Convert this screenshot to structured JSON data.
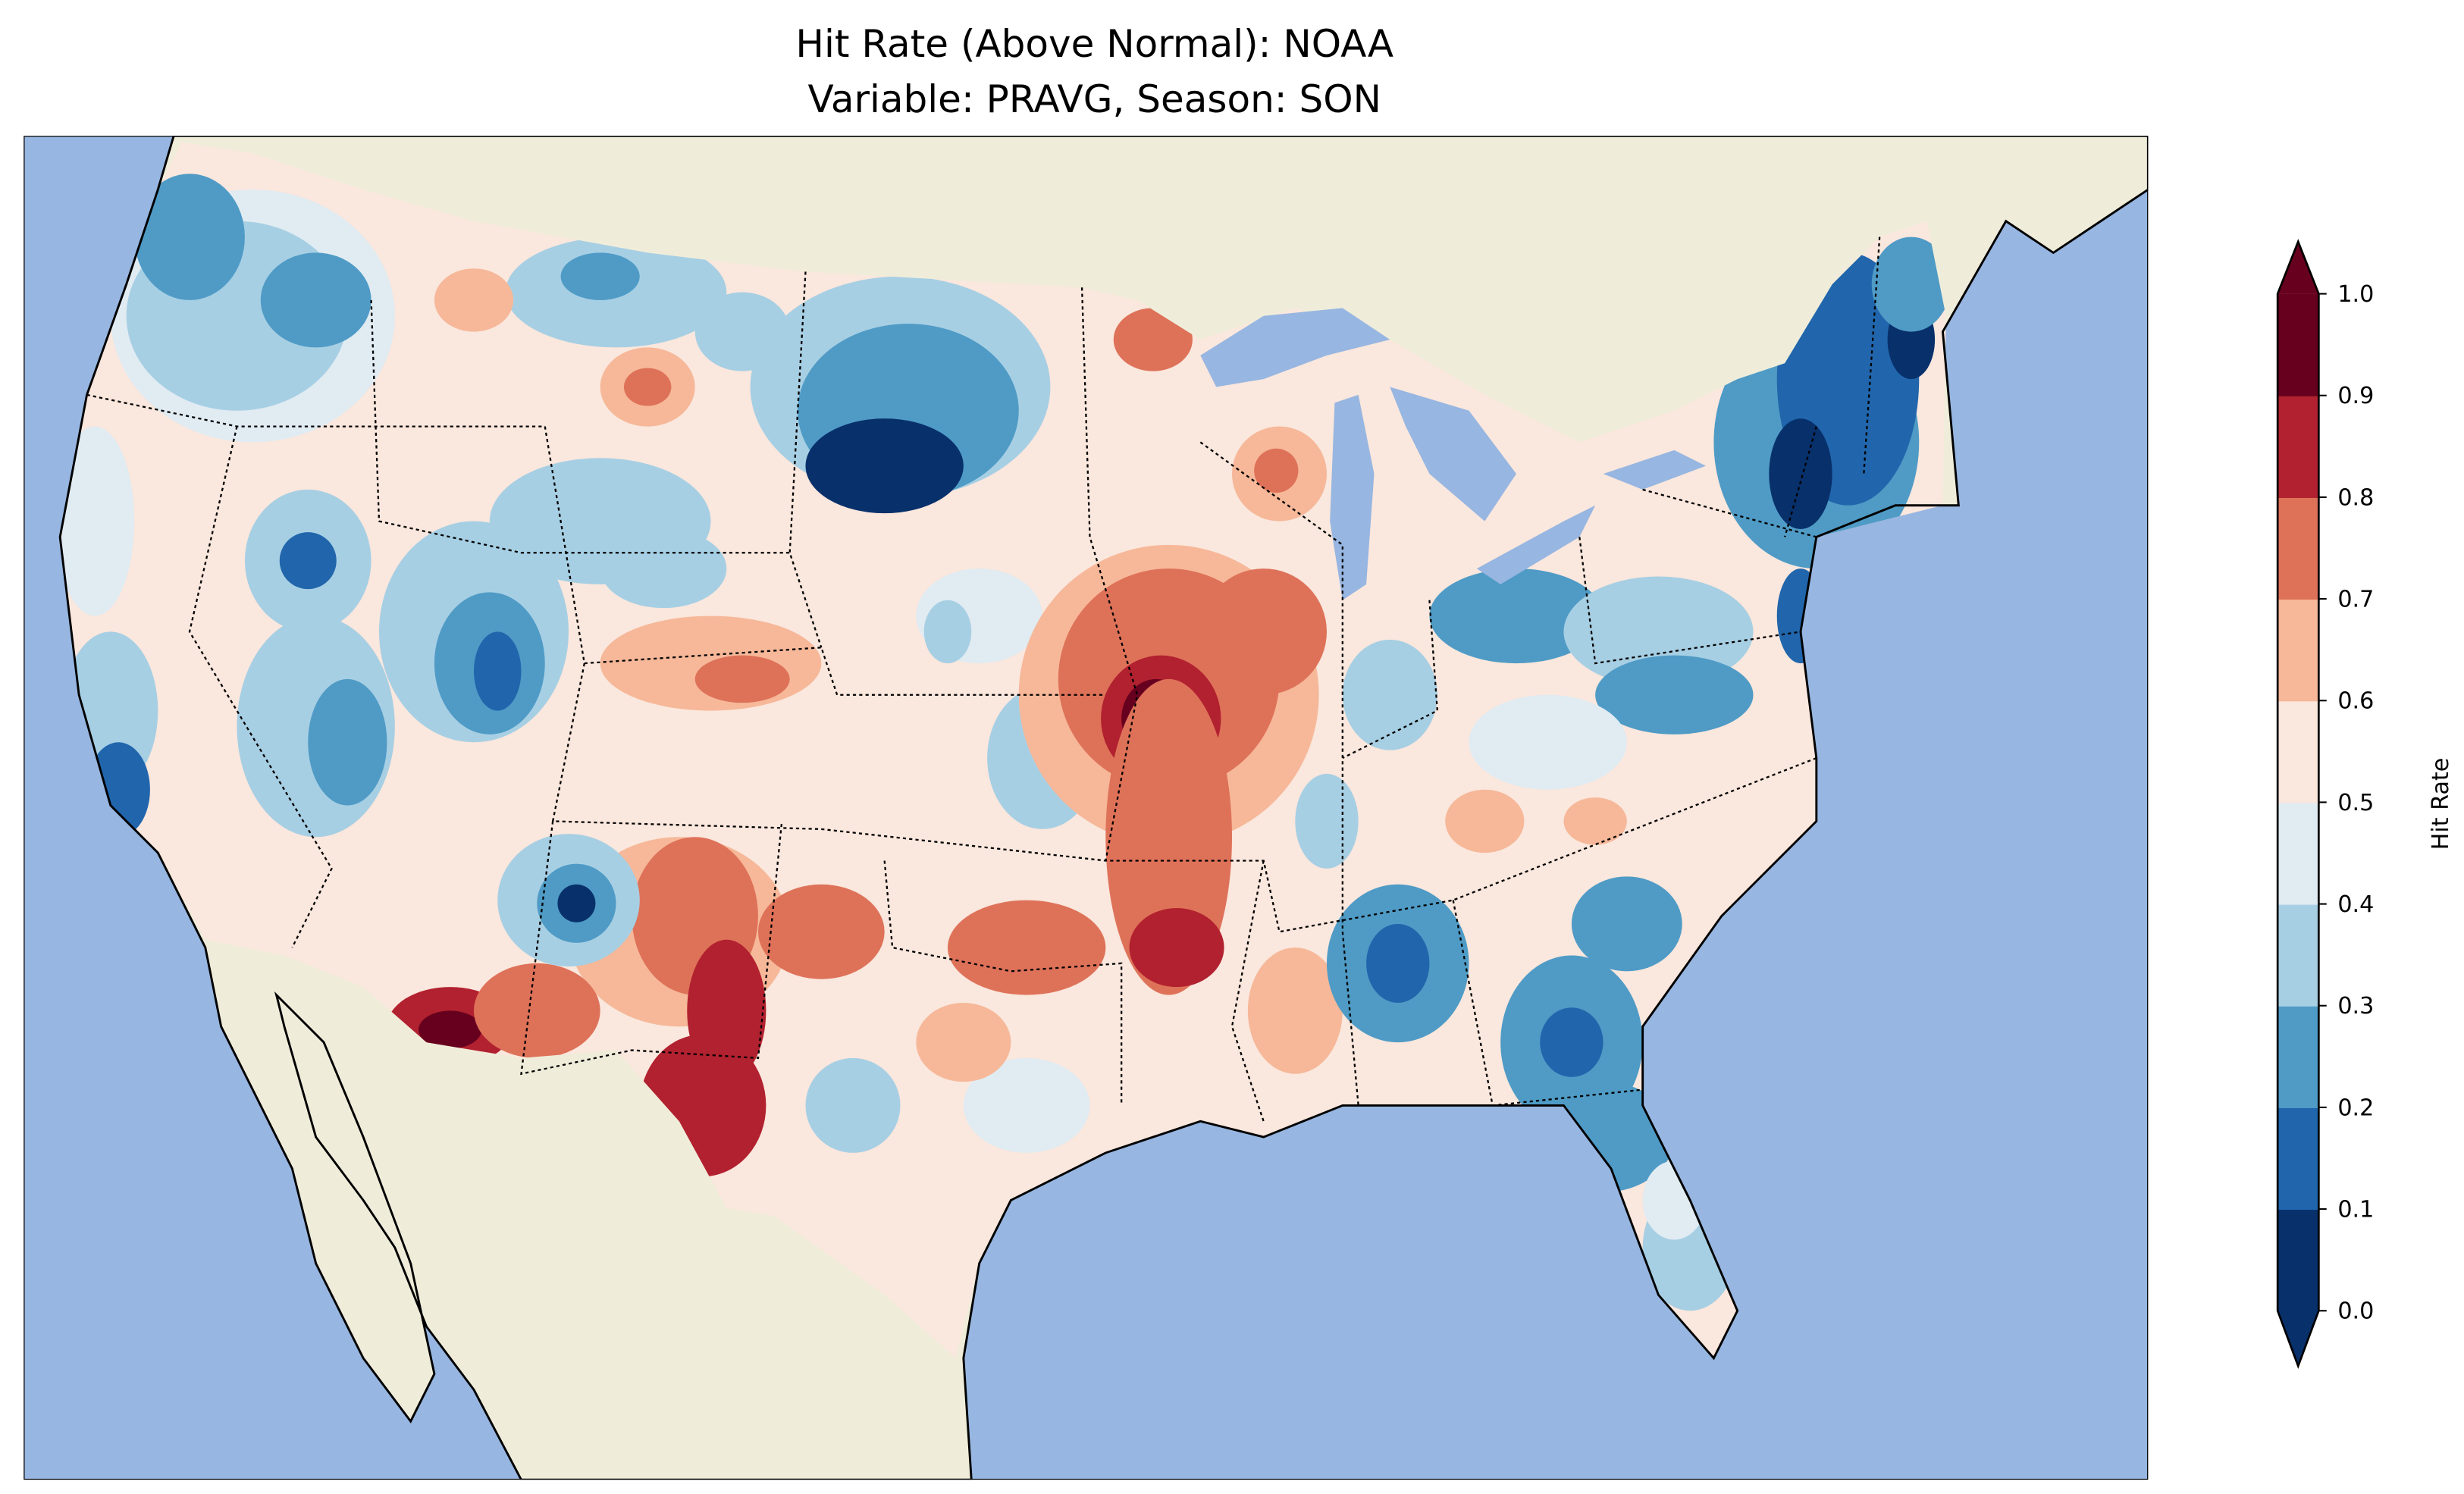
{
  "title": {
    "line1": "Hit Rate (Above Normal): NOAA",
    "line2": "Variable: PRAVG, Season: SON"
  },
  "colors": {
    "ocean": "#97b6e1",
    "land": "#efedda",
    "lakes": "#97b6e1"
  },
  "colorbar": {
    "label": "Hit Rate",
    "ticks": [
      "0.0",
      "0.1",
      "0.2",
      "0.3",
      "0.4",
      "0.5",
      "0.6",
      "0.7",
      "0.8",
      "0.9",
      "1.0"
    ],
    "levels": [
      {
        "from": 0.0,
        "to": 0.1,
        "color": "#08306b"
      },
      {
        "from": 0.1,
        "to": 0.2,
        "color": "#2166ac"
      },
      {
        "from": 0.2,
        "to": 0.3,
        "color": "#4f9bc6"
      },
      {
        "from": 0.3,
        "to": 0.4,
        "color": "#a7cfe4"
      },
      {
        "from": 0.4,
        "to": 0.5,
        "color": "#e0ebf2"
      },
      {
        "from": 0.5,
        "to": 0.6,
        "color": "#fae7dd"
      },
      {
        "from": 0.6,
        "to": 0.7,
        "color": "#f6b899"
      },
      {
        "from": 0.7,
        "to": 0.8,
        "color": "#de7259"
      },
      {
        "from": 0.8,
        "to": 0.9,
        "color": "#b2212f"
      },
      {
        "from": 0.9,
        "to": 1.0,
        "color": "#67001f"
      }
    ],
    "extend": "both"
  }
}
